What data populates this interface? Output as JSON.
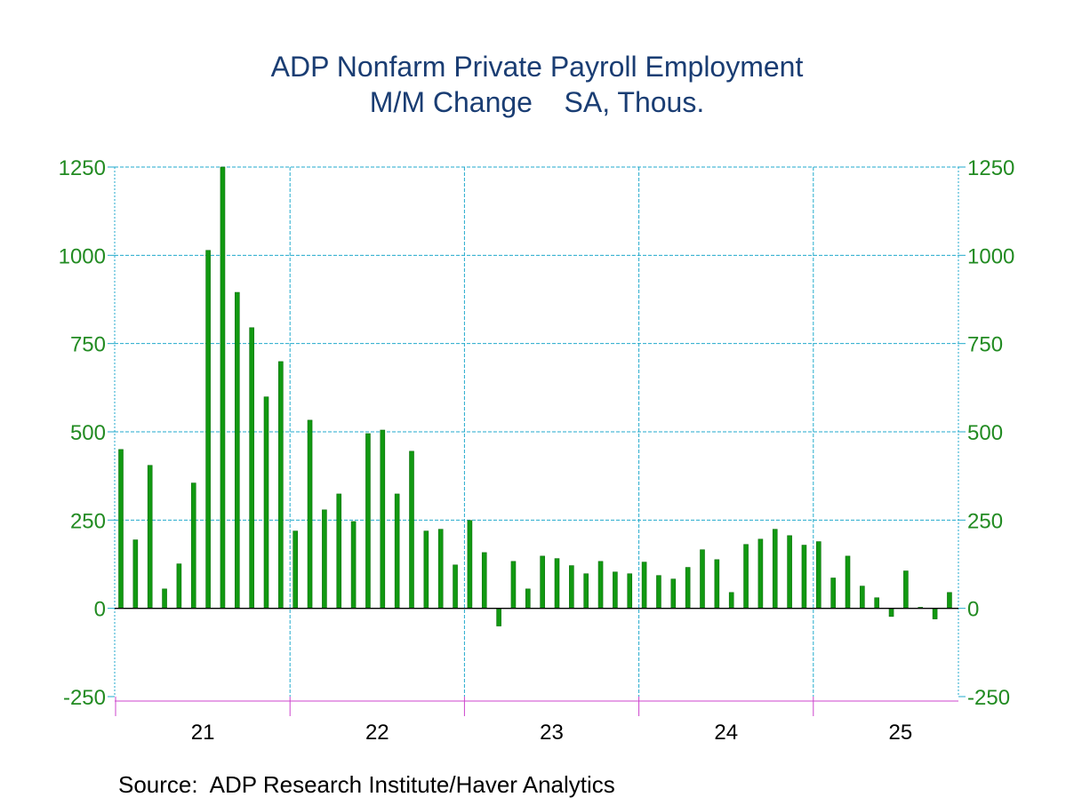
{
  "chart_data": {
    "type": "bar",
    "title": "ADP Nonfarm Private Payroll Employment",
    "subtitle": "M/M Change    SA, Thous.",
    "source": "Source:  ADP Research Institute/Haver Analytics",
    "ylim": [
      -250,
      1250
    ],
    "yticks": [
      -250,
      0,
      250,
      500,
      750,
      1000,
      1250
    ],
    "year_labels": [
      "21",
      "22",
      "23",
      "24",
      "25"
    ],
    "grid": true,
    "colors": {
      "bar": "#119911",
      "grid": "#22aacc",
      "axis_labels": "#228b22",
      "title": "#1a3d73",
      "axis_frame": "#cc44cc"
    },
    "start": "2021-01",
    "frequency": "monthly",
    "values": [
      450,
      194,
      405,
      55,
      126,
      355,
      1014,
      1250,
      895,
      795,
      599,
      699,
      219,
      533,
      279,
      324,
      246,
      495,
      505,
      324,
      445,
      219,
      224,
      123,
      249,
      158,
      -50,
      133,
      55,
      148,
      141,
      121,
      98,
      133,
      103,
      98,
      131,
      93,
      83,
      116,
      166,
      138,
      45,
      181,
      196,
      224,
      206,
      179,
      189,
      86,
      148,
      63,
      30,
      -23,
      106,
      3,
      -30,
      45
    ]
  }
}
